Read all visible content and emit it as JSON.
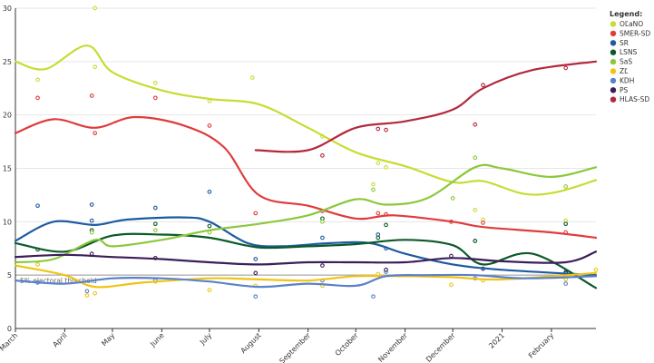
{
  "chart_data": {
    "type": "line",
    "title": "",
    "xlabel": "",
    "ylabel": "",
    "ylim": [
      0,
      30
    ],
    "y_ticks": [
      0,
      5,
      10,
      15,
      20,
      25,
      30
    ],
    "x_range": [
      "2020-03-01",
      "2021-03-01"
    ],
    "x_ticks": [
      {
        "date": "2020-03-01",
        "label": "March"
      },
      {
        "date": "2020-04-01",
        "label": "April"
      },
      {
        "date": "2020-05-01",
        "label": "May"
      },
      {
        "date": "2020-06-01",
        "label": "June"
      },
      {
        "date": "2020-07-01",
        "label": "July"
      },
      {
        "date": "2020-08-01",
        "label": "August"
      },
      {
        "date": "2020-09-01",
        "label": "September"
      },
      {
        "date": "2020-10-01",
        "label": "October"
      },
      {
        "date": "2020-11-01",
        "label": "November"
      },
      {
        "date": "2020-12-01",
        "label": "December"
      },
      {
        "date": "2021-01-01",
        "label": "2021"
      },
      {
        "date": "2021-02-01",
        "label": "February"
      }
    ],
    "grid": "horizontal",
    "legend": {
      "title": "Legend:",
      "position": "top-right"
    },
    "threshold": {
      "value": 5,
      "label": "5% electoral threshold"
    },
    "series": [
      {
        "name": "OĽaNO",
        "color": "#c8dc32",
        "trend": [
          [
            "2020-03-01",
            25.0
          ],
          [
            "2020-03-20",
            24.3
          ],
          [
            "2020-04-15",
            26.5
          ],
          [
            "2020-05-01",
            24.0
          ],
          [
            "2020-06-01",
            22.3
          ],
          [
            "2020-07-01",
            21.5
          ],
          [
            "2020-08-01",
            21.0
          ],
          [
            "2020-09-01",
            18.8
          ],
          [
            "2020-10-01",
            16.5
          ],
          [
            "2020-11-01",
            15.2
          ],
          [
            "2020-12-01",
            13.7
          ],
          [
            "2020-12-20",
            13.8
          ],
          [
            "2021-01-15",
            12.6
          ],
          [
            "2021-02-05",
            12.8
          ],
          [
            "2021-03-01",
            13.9
          ]
        ],
        "points": [
          [
            "2020-03-15",
            23.3
          ],
          [
            "2020-04-20",
            30.0
          ],
          [
            "2020-04-20",
            24.5
          ],
          [
            "2020-05-28",
            23.0
          ],
          [
            "2020-07-01",
            21.3
          ],
          [
            "2020-07-28",
            23.5
          ],
          [
            "2020-09-10",
            18.0
          ],
          [
            "2020-10-12",
            13.5
          ],
          [
            "2020-10-15",
            15.5
          ],
          [
            "2020-10-20",
            15.1
          ],
          [
            "2020-12-15",
            11.1
          ],
          [
            "2020-12-20",
            10.2
          ],
          [
            "2021-02-10",
            10.1
          ]
        ]
      },
      {
        "name": "SMER-SD",
        "color": "#e03c3c",
        "trend": [
          [
            "2020-03-01",
            18.3
          ],
          [
            "2020-03-25",
            19.6
          ],
          [
            "2020-04-20",
            18.8
          ],
          [
            "2020-05-15",
            19.8
          ],
          [
            "2020-06-15",
            19.0
          ],
          [
            "2020-07-10",
            17.0
          ],
          [
            "2020-08-01",
            12.5
          ],
          [
            "2020-09-01",
            11.5
          ],
          [
            "2020-10-01",
            10.3
          ],
          [
            "2020-10-25",
            10.6
          ],
          [
            "2020-12-01",
            10.0
          ],
          [
            "2020-12-20",
            9.5
          ],
          [
            "2021-02-01",
            9.0
          ],
          [
            "2021-03-01",
            8.5
          ]
        ],
        "points": [
          [
            "2020-03-15",
            21.6
          ],
          [
            "2020-04-18",
            21.8
          ],
          [
            "2020-04-20",
            18.3
          ],
          [
            "2020-05-28",
            21.6
          ],
          [
            "2020-07-01",
            19.0
          ],
          [
            "2020-07-30",
            10.8
          ],
          [
            "2020-09-10",
            11.0
          ],
          [
            "2020-10-15",
            10.8
          ],
          [
            "2020-10-20",
            10.7
          ],
          [
            "2020-11-30",
            10.0
          ],
          [
            "2020-12-20",
            9.9
          ],
          [
            "2021-02-10",
            9.0
          ]
        ]
      },
      {
        "name": "SR",
        "color": "#1e5aa0",
        "trend": [
          [
            "2020-03-01",
            8.2
          ],
          [
            "2020-03-25",
            10.0
          ],
          [
            "2020-04-20",
            9.7
          ],
          [
            "2020-05-10",
            10.2
          ],
          [
            "2020-06-15",
            10.4
          ],
          [
            "2020-07-01",
            10.0
          ],
          [
            "2020-07-25",
            8.0
          ],
          [
            "2020-08-15",
            7.7
          ],
          [
            "2020-09-15",
            8.0
          ],
          [
            "2020-10-10",
            8.0
          ],
          [
            "2020-11-01",
            7.0
          ],
          [
            "2020-12-01",
            6.0
          ],
          [
            "2021-01-01",
            5.5
          ],
          [
            "2021-03-01",
            5.0
          ]
        ],
        "points": [
          [
            "2020-03-15",
            11.5
          ],
          [
            "2020-04-18",
            11.6
          ],
          [
            "2020-04-18",
            10.1
          ],
          [
            "2020-05-28",
            11.3
          ],
          [
            "2020-07-01",
            12.8
          ],
          [
            "2020-07-30",
            6.5
          ],
          [
            "2020-09-10",
            8.5
          ],
          [
            "2020-10-15",
            8.8
          ],
          [
            "2020-10-20",
            7.5
          ],
          [
            "2020-12-15",
            8.2
          ],
          [
            "2021-02-10",
            5.3
          ]
        ]
      },
      {
        "name": "LSNS",
        "color": "#0a5a28",
        "trend": [
          [
            "2020-03-01",
            8.0
          ],
          [
            "2020-04-01",
            7.2
          ],
          [
            "2020-05-01",
            8.7
          ],
          [
            "2020-06-01",
            8.8
          ],
          [
            "2020-07-01",
            8.5
          ],
          [
            "2020-08-01",
            7.6
          ],
          [
            "2020-09-01",
            7.7
          ],
          [
            "2020-10-01",
            7.9
          ],
          [
            "2020-11-01",
            8.3
          ],
          [
            "2020-12-01",
            7.8
          ],
          [
            "2020-12-20",
            6.0
          ],
          [
            "2021-01-20",
            7.0
          ],
          [
            "2021-03-01",
            3.8
          ]
        ],
        "points": [
          [
            "2020-03-15",
            7.4
          ],
          [
            "2020-04-18",
            9.2
          ],
          [
            "2020-05-28",
            9.8
          ],
          [
            "2020-07-01",
            9.6
          ],
          [
            "2020-09-10",
            10.3
          ],
          [
            "2020-10-15",
            8.5
          ],
          [
            "2020-10-20",
            9.7
          ],
          [
            "2020-12-15",
            8.2
          ],
          [
            "2021-02-10",
            9.8
          ]
        ]
      },
      {
        "name": "SaS",
        "color": "#8cc83c",
        "trend": [
          [
            "2020-03-01",
            6.2
          ],
          [
            "2020-03-25",
            6.5
          ],
          [
            "2020-04-20",
            8.3
          ],
          [
            "2020-05-01",
            7.7
          ],
          [
            "2020-06-01",
            8.3
          ],
          [
            "2020-07-01",
            9.2
          ],
          [
            "2020-08-01",
            9.8
          ],
          [
            "2020-09-01",
            10.6
          ],
          [
            "2020-10-01",
            12.1
          ],
          [
            "2020-10-20",
            11.6
          ],
          [
            "2020-11-15",
            12.2
          ],
          [
            "2020-12-15",
            15.1
          ],
          [
            "2021-01-01",
            15.0
          ],
          [
            "2021-02-01",
            14.2
          ],
          [
            "2021-03-01",
            15.1
          ]
        ],
        "points": [
          [
            "2020-03-15",
            6.0
          ],
          [
            "2020-04-18",
            9.0
          ],
          [
            "2020-05-28",
            9.2
          ],
          [
            "2020-07-01",
            9.0
          ],
          [
            "2020-09-10",
            10.0
          ],
          [
            "2020-10-12",
            13.0
          ],
          [
            "2020-12-15",
            16.0
          ],
          [
            "2020-12-01",
            12.2
          ],
          [
            "2021-02-10",
            13.3
          ]
        ]
      },
      {
        "name": "ZĽ",
        "color": "#f0c314",
        "trend": [
          [
            "2020-03-01",
            5.9
          ],
          [
            "2020-04-01",
            5.0
          ],
          [
            "2020-04-20",
            3.9
          ],
          [
            "2020-05-20",
            4.3
          ],
          [
            "2020-07-01",
            4.7
          ],
          [
            "2020-08-01",
            4.6
          ],
          [
            "2020-09-01",
            4.5
          ],
          [
            "2020-10-01",
            4.9
          ],
          [
            "2020-11-01",
            4.9
          ],
          [
            "2020-12-01",
            4.8
          ],
          [
            "2021-01-01",
            4.6
          ],
          [
            "2021-03-01",
            5.2
          ]
        ],
        "points": [
          [
            "2020-03-15",
            6.0
          ],
          [
            "2020-04-15",
            3.1
          ],
          [
            "2020-04-20",
            3.3
          ],
          [
            "2020-05-28",
            4.4
          ],
          [
            "2020-07-01",
            3.6
          ],
          [
            "2020-07-30",
            4.0
          ],
          [
            "2020-09-10",
            4.0
          ],
          [
            "2020-10-15",
            5.1
          ],
          [
            "2020-11-30",
            4.1
          ],
          [
            "2020-12-20",
            4.5
          ],
          [
            "2021-02-10",
            4.6
          ],
          [
            "2021-03-01",
            5.5
          ]
        ]
      },
      {
        "name": "KDH",
        "color": "#5a82c8",
        "trend": [
          [
            "2020-03-01",
            4.5
          ],
          [
            "2020-04-01",
            4.2
          ],
          [
            "2020-05-01",
            4.7
          ],
          [
            "2020-06-01",
            4.7
          ],
          [
            "2020-07-01",
            4.4
          ],
          [
            "2020-08-01",
            3.9
          ],
          [
            "2020-09-01",
            4.2
          ],
          [
            "2020-10-01",
            4.0
          ],
          [
            "2020-10-20",
            4.9
          ],
          [
            "2020-11-15",
            5.0
          ],
          [
            "2020-12-15",
            5.0
          ],
          [
            "2021-01-15",
            4.7
          ],
          [
            "2021-03-01",
            4.9
          ]
        ],
        "points": [
          [
            "2020-03-15",
            4.3
          ],
          [
            "2020-04-15",
            3.5
          ],
          [
            "2020-05-28",
            4.5
          ],
          [
            "2020-07-30",
            3.0
          ],
          [
            "2020-09-10",
            4.5
          ],
          [
            "2020-10-12",
            3.0
          ],
          [
            "2020-10-20",
            5.3
          ],
          [
            "2020-12-15",
            4.7
          ],
          [
            "2021-02-10",
            4.2
          ]
        ]
      },
      {
        "name": "PS",
        "color": "#3c1e5a",
        "trend": [
          [
            "2020-03-01",
            6.7
          ],
          [
            "2020-04-01",
            6.9
          ],
          [
            "2020-05-01",
            6.7
          ],
          [
            "2020-06-01",
            6.5
          ],
          [
            "2020-07-01",
            6.2
          ],
          [
            "2020-08-01",
            6.0
          ],
          [
            "2020-09-01",
            6.2
          ],
          [
            "2020-10-01",
            6.2
          ],
          [
            "2020-11-01",
            6.2
          ],
          [
            "2020-12-01",
            6.6
          ],
          [
            "2021-01-01",
            6.3
          ],
          [
            "2021-02-10",
            6.2
          ],
          [
            "2021-03-01",
            7.2
          ]
        ],
        "points": [
          [
            "2020-04-18",
            7.0
          ],
          [
            "2020-05-28",
            6.6
          ],
          [
            "2020-07-30",
            5.2
          ],
          [
            "2020-09-10",
            5.9
          ],
          [
            "2020-10-20",
            5.5
          ],
          [
            "2020-11-30",
            6.8
          ],
          [
            "2020-12-20",
            5.6
          ],
          [
            "2021-02-10",
            5.2
          ]
        ]
      },
      {
        "name": "HLAS-SD",
        "color": "#b4283c",
        "trend": [
          [
            "2020-07-30",
            16.7
          ],
          [
            "2020-09-01",
            16.7
          ],
          [
            "2020-10-01",
            18.8
          ],
          [
            "2020-11-01",
            19.4
          ],
          [
            "2020-12-01",
            20.5
          ],
          [
            "2020-12-20",
            22.5
          ],
          [
            "2021-01-20",
            24.2
          ],
          [
            "2021-03-01",
            25.0
          ]
        ],
        "points": [
          [
            "2020-09-10",
            16.2
          ],
          [
            "2020-10-15",
            18.7
          ],
          [
            "2020-10-20",
            18.6
          ],
          [
            "2020-12-15",
            19.1
          ],
          [
            "2020-12-20",
            22.8
          ],
          [
            "2021-02-10",
            24.4
          ]
        ]
      }
    ]
  }
}
